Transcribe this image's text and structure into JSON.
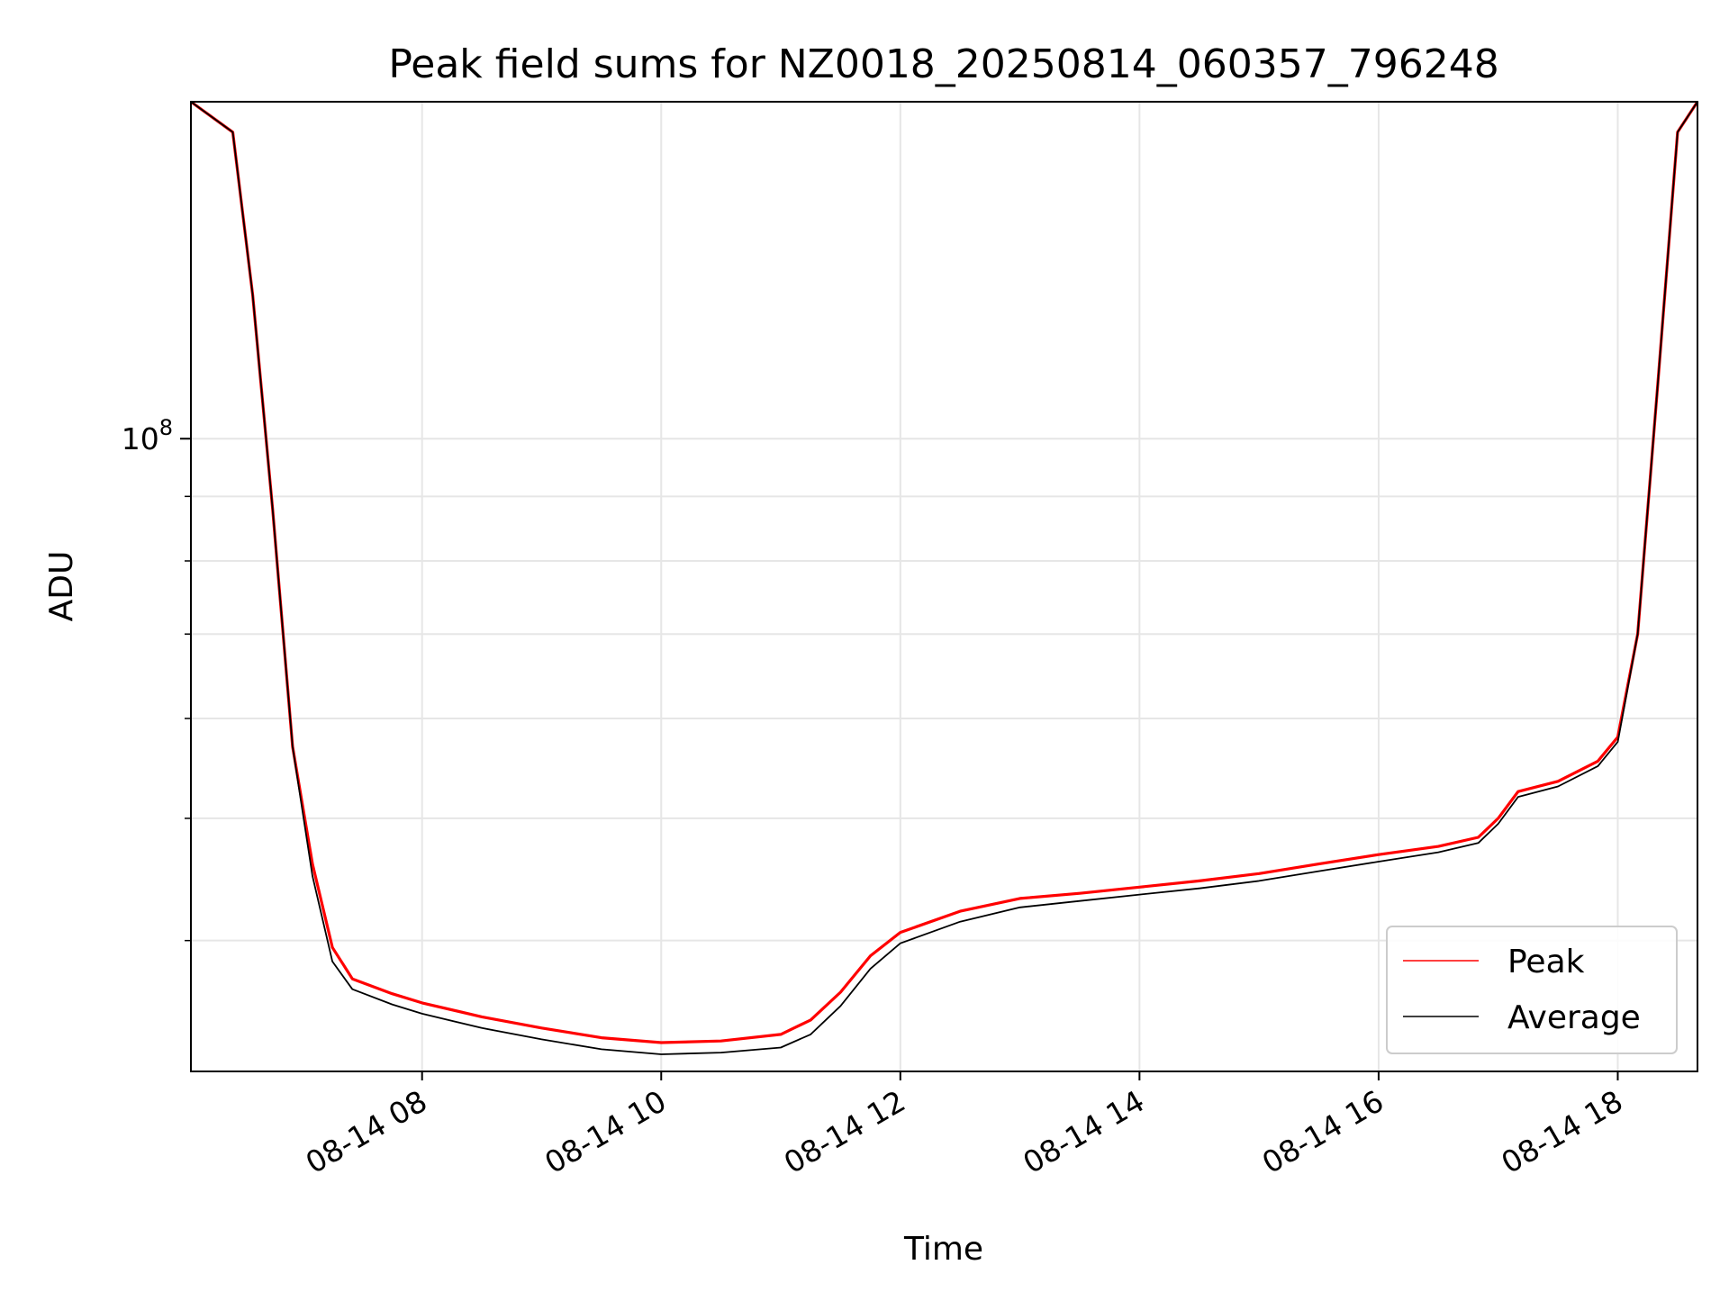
{
  "chart_data": {
    "type": "line",
    "title": "Peak field sums for NZ0018_20250814_060357_796248",
    "xlabel": "Time",
    "ylabel": "ADU",
    "yscale": "log",
    "xlim": [
      "2025-08-14T06:04",
      "2025-08-14T18:40"
    ],
    "ylim": [
      31500000,
      185000000
    ],
    "grid": true,
    "legend_position": "lower right",
    "x_ticks": [
      "08-14 08",
      "08-14 10",
      "08-14 12",
      "08-14 14",
      "08-14 16",
      "08-14 18"
    ],
    "y_ticks": [
      {
        "base": "10",
        "exp": "8",
        "value": 100000000
      }
    ],
    "colors": {
      "peak": "#ff0000",
      "average": "#000000",
      "grid": "#e6e6e6"
    },
    "series": [
      {
        "name": "Peak",
        "color": "#ff0000",
        "points": [
          [
            "2025-08-14T06:04",
            185000000
          ],
          [
            "2025-08-14T06:25",
            175000000
          ],
          [
            "2025-08-14T06:35",
            130000000
          ],
          [
            "2025-08-14T06:45",
            88000000
          ],
          [
            "2025-08-14T06:55",
            57000000
          ],
          [
            "2025-08-14T07:05",
            46000000
          ],
          [
            "2025-08-14T07:15",
            39500000
          ],
          [
            "2025-08-14T07:25",
            37300000
          ],
          [
            "2025-08-14T07:45",
            36300000
          ],
          [
            "2025-08-14T08:00",
            35700000
          ],
          [
            "2025-08-14T08:30",
            34800000
          ],
          [
            "2025-08-14T09:00",
            34100000
          ],
          [
            "2025-08-14T09:30",
            33500000
          ],
          [
            "2025-08-14T10:00",
            33200000
          ],
          [
            "2025-08-14T10:30",
            33300000
          ],
          [
            "2025-08-14T11:00",
            33700000
          ],
          [
            "2025-08-14T11:15",
            34600000
          ],
          [
            "2025-08-14T11:30",
            36400000
          ],
          [
            "2025-08-14T11:45",
            38900000
          ],
          [
            "2025-08-14T12:00",
            40600000
          ],
          [
            "2025-08-14T12:30",
            42200000
          ],
          [
            "2025-08-14T13:00",
            43200000
          ],
          [
            "2025-08-14T13:30",
            43600000
          ],
          [
            "2025-08-14T14:00",
            44100000
          ],
          [
            "2025-08-14T14:30",
            44600000
          ],
          [
            "2025-08-14T15:00",
            45200000
          ],
          [
            "2025-08-14T15:30",
            46000000
          ],
          [
            "2025-08-14T16:00",
            46800000
          ],
          [
            "2025-08-14T16:30",
            47500000
          ],
          [
            "2025-08-14T16:50",
            48300000
          ],
          [
            "2025-08-14T17:00",
            50000000
          ],
          [
            "2025-08-14T17:10",
            52500000
          ],
          [
            "2025-08-14T17:30",
            53500000
          ],
          [
            "2025-08-14T17:50",
            55500000
          ],
          [
            "2025-08-14T18:00",
            58000000
          ],
          [
            "2025-08-14T18:10",
            70000000
          ],
          [
            "2025-08-14T18:20",
            110000000
          ],
          [
            "2025-08-14T18:30",
            175000000
          ],
          [
            "2025-08-14T18:40",
            185000000
          ]
        ]
      },
      {
        "name": "Average",
        "color": "#000000",
        "points": [
          [
            "2025-08-14T06:04",
            185000000
          ],
          [
            "2025-08-14T06:25",
            175000000
          ],
          [
            "2025-08-14T06:35",
            130000000
          ],
          [
            "2025-08-14T06:45",
            88000000
          ],
          [
            "2025-08-14T06:55",
            57000000
          ],
          [
            "2025-08-14T07:05",
            45000000
          ],
          [
            "2025-08-14T07:15",
            38500000
          ],
          [
            "2025-08-14T07:25",
            36600000
          ],
          [
            "2025-08-14T07:45",
            35600000
          ],
          [
            "2025-08-14T08:00",
            35000000
          ],
          [
            "2025-08-14T08:30",
            34100000
          ],
          [
            "2025-08-14T09:00",
            33400000
          ],
          [
            "2025-08-14T09:30",
            32800000
          ],
          [
            "2025-08-14T10:00",
            32500000
          ],
          [
            "2025-08-14T10:30",
            32600000
          ],
          [
            "2025-08-14T11:00",
            32900000
          ],
          [
            "2025-08-14T11:15",
            33700000
          ],
          [
            "2025-08-14T11:30",
            35500000
          ],
          [
            "2025-08-14T11:45",
            38000000
          ],
          [
            "2025-08-14T12:00",
            39800000
          ],
          [
            "2025-08-14T12:30",
            41400000
          ],
          [
            "2025-08-14T13:00",
            42500000
          ],
          [
            "2025-08-14T13:30",
            43000000
          ],
          [
            "2025-08-14T14:00",
            43500000
          ],
          [
            "2025-08-14T14:30",
            44000000
          ],
          [
            "2025-08-14T15:00",
            44600000
          ],
          [
            "2025-08-14T15:30",
            45400000
          ],
          [
            "2025-08-14T16:00",
            46200000
          ],
          [
            "2025-08-14T16:30",
            47000000
          ],
          [
            "2025-08-14T16:50",
            47800000
          ],
          [
            "2025-08-14T17:00",
            49500000
          ],
          [
            "2025-08-14T17:10",
            52000000
          ],
          [
            "2025-08-14T17:30",
            53000000
          ],
          [
            "2025-08-14T17:50",
            55000000
          ],
          [
            "2025-08-14T18:00",
            57500000
          ],
          [
            "2025-08-14T18:10",
            70000000
          ],
          [
            "2025-08-14T18:20",
            110000000
          ],
          [
            "2025-08-14T18:30",
            175000000
          ],
          [
            "2025-08-14T18:40",
            185000000
          ]
        ]
      }
    ]
  }
}
